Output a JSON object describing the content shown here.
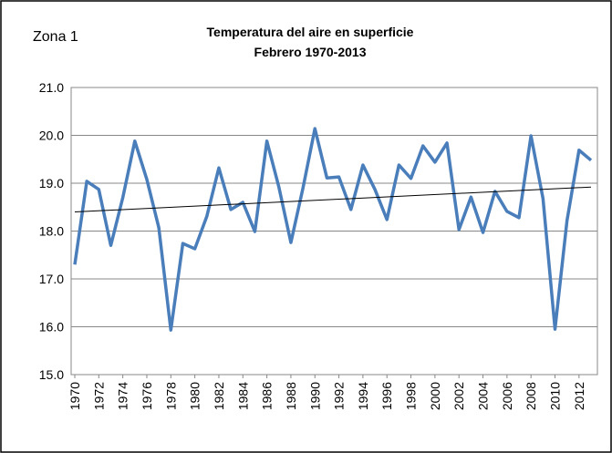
{
  "chart_data": {
    "type": "line",
    "title": "Temperatura del aire en superficie",
    "subtitle": "Febrero 1970-2013",
    "annotation": "Zona 1",
    "x": [
      1970,
      1971,
      1972,
      1973,
      1974,
      1975,
      1976,
      1977,
      1978,
      1979,
      1980,
      1981,
      1982,
      1983,
      1984,
      1985,
      1986,
      1987,
      1988,
      1989,
      1990,
      1991,
      1992,
      1993,
      1994,
      1995,
      1996,
      1997,
      1998,
      1999,
      2000,
      2001,
      2002,
      2003,
      2004,
      2005,
      2006,
      2007,
      2008,
      2009,
      2010,
      2011,
      2012,
      2013
    ],
    "series": [
      {
        "color": "#4a7ebb",
        "values": [
          17.3,
          19.04,
          18.87,
          17.7,
          18.7,
          19.88,
          19.08,
          18.07,
          15.93,
          17.74,
          17.63,
          18.31,
          19.32,
          18.45,
          18.6,
          17.99,
          19.88,
          18.92,
          17.76,
          18.89,
          20.14,
          19.11,
          19.13,
          18.45,
          19.38,
          18.87,
          18.24,
          19.38,
          19.1,
          19.78,
          19.44,
          19.84,
          18.03,
          18.71,
          17.97,
          18.83,
          18.41,
          18.28,
          19.99,
          18.68,
          15.95,
          18.22,
          19.69,
          19.48
        ]
      }
    ],
    "trend": {
      "x": [
        1970,
        2013
      ],
      "values": [
        18.4,
        18.92
      ],
      "color": "#000000"
    },
    "xlim": [
      1970,
      2013
    ],
    "xticks": [
      1970,
      1972,
      1974,
      1976,
      1978,
      1980,
      1982,
      1984,
      1986,
      1988,
      1990,
      1992,
      1994,
      1996,
      1998,
      2000,
      2002,
      2004,
      2006,
      2008,
      2010,
      2012
    ],
    "ylim": [
      15,
      21
    ],
    "yticks": [
      {
        "value": 15,
        "label": "15.0"
      },
      {
        "value": 16,
        "label": "16.0"
      },
      {
        "value": 17,
        "label": "17.0"
      },
      {
        "value": 18,
        "label": "18.0"
      },
      {
        "value": 19,
        "label": "19.0"
      },
      {
        "value": 20,
        "label": "20.0"
      },
      {
        "value": 21,
        "label": "21.0"
      }
    ],
    "grid": true
  }
}
